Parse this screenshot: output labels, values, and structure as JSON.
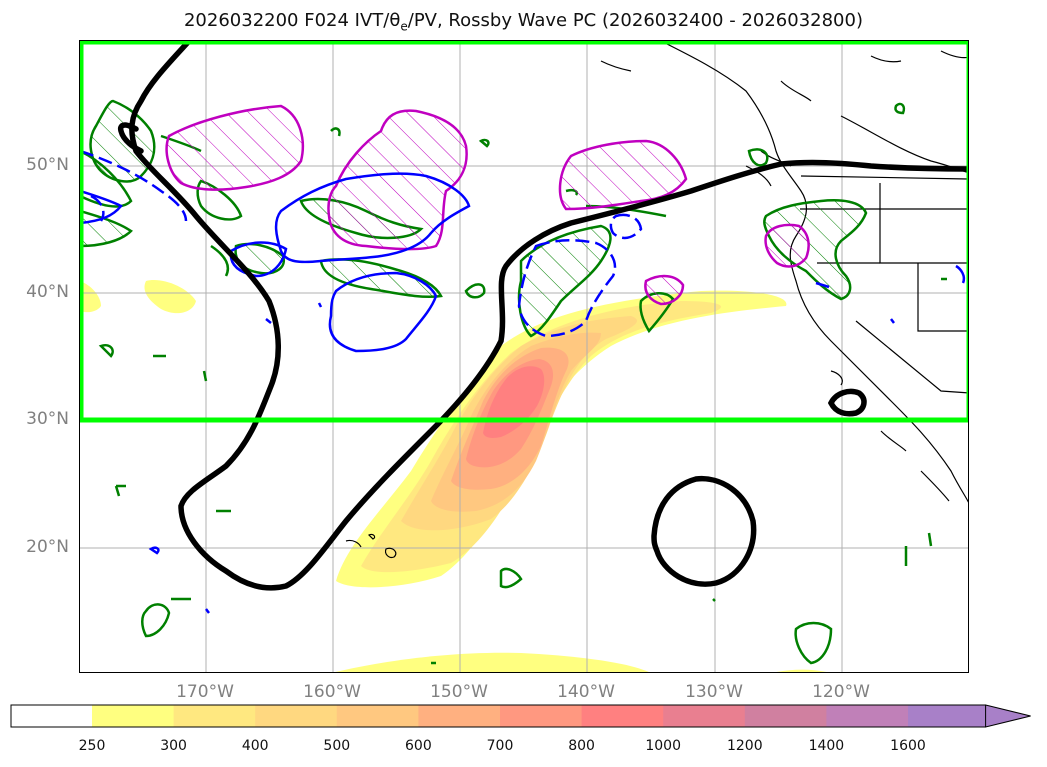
{
  "title": {
    "prefix": "2026032200 F024 IVT/",
    "theta": "θ",
    "theta_sub": "e",
    "suffix": "/PV, Rossby Wave PC (2026032400 - 2026032800)"
  },
  "lat_labels": [
    "50°N",
    "40°N",
    "30°N",
    "20°N"
  ],
  "lon_labels": [
    "170°W",
    "160°W",
    "150°W",
    "140°W",
    "130°W",
    "120°W"
  ],
  "colorbar": {
    "ticks": [
      "250",
      "300",
      "400",
      "500",
      "600",
      "700",
      "800",
      "1000",
      "1200",
      "1400",
      "1600"
    ],
    "colors": [
      "#ffff80",
      "#ffe880",
      "#ffd880",
      "#ffc880",
      "#ffb080",
      "#ff9880",
      "#ff8080",
      "#e97f90",
      "#d080a0",
      "#c080b8",
      "#a880c8"
    ],
    "below_color": "#ffffff",
    "extend": "max"
  },
  "legend_colors": {
    "rossby_wave_pc": "#000000",
    "target_box": "#00ff00",
    "theta_e": "#008000",
    "pv_positive": "#c000c0",
    "pv_negative": "#0000ff"
  }
}
